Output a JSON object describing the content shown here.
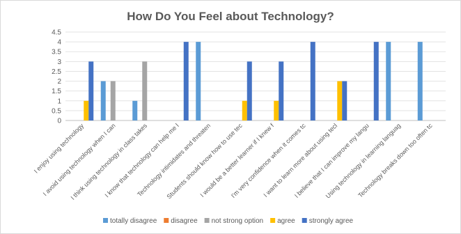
{
  "chart_data": {
    "type": "bar",
    "title": "How Do You Feel about Technology?",
    "xlabel": "",
    "ylabel": "",
    "ylim": [
      0,
      4.5
    ],
    "yticks": [
      "0",
      "0.5",
      "1",
      "1.5",
      "2",
      "2.5",
      "3",
      "3.5",
      "4",
      "4.5"
    ],
    "grid": true,
    "legend_position": "bottom",
    "categories": [
      "I enjoy using technology",
      "I avoid using technology when I can",
      "I think using technology in class takes",
      "I know that technology can help me l",
      "Technology intimidates and threaten",
      "Students should know how to use tec",
      "I would be a better learner if I knew f",
      "I'm very confidence when it comes tc",
      "I want to learn more about using tecl",
      "I believe that I can improve my langu",
      "Using technology in learning languag",
      "Technology breaks down too often tc"
    ],
    "series": [
      {
        "name": "totally disagree",
        "color": "#5b9bd5",
        "values": [
          null,
          2,
          1,
          null,
          4,
          null,
          null,
          null,
          null,
          null,
          4,
          4
        ]
      },
      {
        "name": "disagree",
        "color": "#ed7d31",
        "values": [
          null,
          null,
          null,
          null,
          null,
          null,
          null,
          null,
          null,
          null,
          null,
          null
        ]
      },
      {
        "name": "not strong option",
        "color": "#a5a5a5",
        "values": [
          null,
          2,
          3,
          null,
          null,
          null,
          null,
          null,
          null,
          null,
          null,
          null
        ]
      },
      {
        "name": "agree",
        "color": "#ffc000",
        "values": [
          1,
          null,
          null,
          null,
          null,
          1,
          1,
          null,
          2,
          null,
          null,
          null
        ]
      },
      {
        "name": "strongly agree",
        "color": "#4472c4",
        "values": [
          3,
          null,
          null,
          4,
          null,
          3,
          3,
          4,
          2,
          4,
          null,
          null
        ]
      }
    ]
  }
}
